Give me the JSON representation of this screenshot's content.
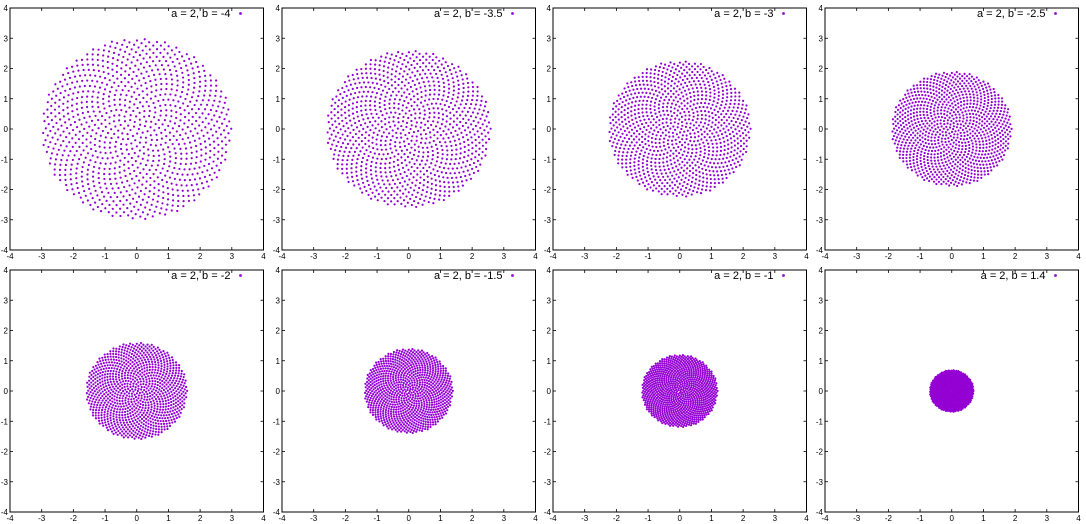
{
  "point_color": "#9400d3",
  "chart_data": [
    {
      "type": "scatter",
      "series": [
        {
          "name": "a = 2, b = -4",
          "a": 2,
          "b": -4,
          "disc_radius": 3.0
        }
      ],
      "xlim": [
        -4,
        4
      ],
      "ylim": [
        -4,
        4
      ],
      "xticks": [
        -4,
        -3,
        -2,
        -1,
        0,
        1,
        2,
        3,
        4
      ],
      "yticks": [
        -4,
        -3,
        -2,
        -1,
        0,
        1,
        2,
        3,
        4
      ],
      "grid": false,
      "legend_position": "top-right"
    },
    {
      "type": "scatter",
      "series": [
        {
          "name": "a = 2, b = -3.5",
          "a": 2,
          "b": -3.5,
          "disc_radius": 2.6
        }
      ],
      "xlim": [
        -4,
        4
      ],
      "ylim": [
        -4,
        4
      ],
      "xticks": [
        -4,
        -3,
        -2,
        -1,
        0,
        1,
        2,
        3,
        4
      ],
      "yticks": [
        -4,
        -3,
        -2,
        -1,
        0,
        1,
        2,
        3,
        4
      ],
      "grid": false,
      "legend_position": "top-right"
    },
    {
      "type": "scatter",
      "series": [
        {
          "name": "a = 2, b = -3",
          "a": 2,
          "b": -3,
          "disc_radius": 2.25
        }
      ],
      "xlim": [
        -4,
        4
      ],
      "ylim": [
        -4,
        4
      ],
      "xticks": [
        -4,
        -3,
        -2,
        -1,
        0,
        1,
        2,
        3,
        4
      ],
      "yticks": [
        -4,
        -3,
        -2,
        -1,
        0,
        1,
        2,
        3,
        4
      ],
      "grid": false,
      "legend_position": "top-right"
    },
    {
      "type": "scatter",
      "series": [
        {
          "name": "a = 2, b = -2.5",
          "a": 2,
          "b": -2.5,
          "disc_radius": 1.9
        }
      ],
      "xlim": [
        -4,
        4
      ],
      "ylim": [
        -4,
        4
      ],
      "xticks": [
        -4,
        -3,
        -2,
        -1,
        0,
        1,
        2,
        3,
        4
      ],
      "yticks": [
        -4,
        -3,
        -2,
        -1,
        0,
        1,
        2,
        3,
        4
      ],
      "grid": false,
      "legend_position": "top-right"
    },
    {
      "type": "scatter",
      "series": [
        {
          "name": "a = 2, b = -2",
          "a": 2,
          "b": -2,
          "disc_radius": 1.6
        }
      ],
      "xlim": [
        -4,
        4
      ],
      "ylim": [
        -4,
        4
      ],
      "xticks": [
        -4,
        -3,
        -2,
        -1,
        0,
        1,
        2,
        3,
        4
      ],
      "yticks": [
        -4,
        -3,
        -2,
        -1,
        0,
        1,
        2,
        3,
        4
      ],
      "grid": false,
      "legend_position": "top-right"
    },
    {
      "type": "scatter",
      "series": [
        {
          "name": "a = 2, b = -1.5",
          "a": 2,
          "b": -1.5,
          "disc_radius": 1.4
        }
      ],
      "xlim": [
        -4,
        4
      ],
      "ylim": [
        -4,
        4
      ],
      "xticks": [
        -4,
        -3,
        -2,
        -1,
        0,
        1,
        2,
        3,
        4
      ],
      "yticks": [
        -4,
        -3,
        -2,
        -1,
        0,
        1,
        2,
        3,
        4
      ],
      "grid": false,
      "legend_position": "top-right"
    },
    {
      "type": "scatter",
      "series": [
        {
          "name": "a = 2, b = -1",
          "a": 2,
          "b": -1,
          "disc_radius": 1.2
        }
      ],
      "xlim": [
        -4,
        4
      ],
      "ylim": [
        -4,
        4
      ],
      "xticks": [
        -4,
        -3,
        -2,
        -1,
        0,
        1,
        2,
        3,
        4
      ],
      "yticks": [
        -4,
        -3,
        -2,
        -1,
        0,
        1,
        2,
        3,
        4
      ],
      "grid": false,
      "legend_position": "top-right"
    },
    {
      "type": "scatter",
      "series": [
        {
          "name": "a = 2, b = 1.4",
          "a": 2,
          "b": 1.4,
          "disc_radius": 0.7
        }
      ],
      "xlim": [
        -4,
        4
      ],
      "ylim": [
        -4,
        4
      ],
      "xticks": [
        -4,
        -3,
        -2,
        -1,
        0,
        1,
        2,
        3,
        4
      ],
      "yticks": [
        -4,
        -3,
        -2,
        -1,
        0,
        1,
        2,
        3,
        4
      ],
      "grid": false,
      "legend_position": "top-right"
    }
  ]
}
